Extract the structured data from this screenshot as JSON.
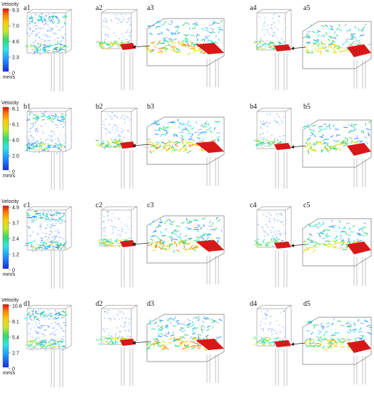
{
  "colorbar": {
    "title": "Velocity",
    "unit": "mm/s",
    "colors": [
      "#1a2bd6",
      "#1f8fff",
      "#2ee6e6",
      "#35d96b",
      "#c8e82a",
      "#ffcc00",
      "#ff7a00",
      "#e01010"
    ]
  },
  "rows": [
    {
      "id": "a",
      "ticks": [
        "9.3",
        "7.0",
        "4.6",
        "2.3",
        "0"
      ],
      "panels": [
        "a1",
        "a2",
        "a3",
        "a4",
        "a5"
      ]
    },
    {
      "id": "b",
      "ticks": [
        "8.1",
        "6.1",
        "4.0",
        "2.0",
        "0"
      ],
      "panels": [
        "b1",
        "b2",
        "b3",
        "b4",
        "b5"
      ]
    },
    {
      "id": "c",
      "ticks": [
        "4.9",
        "3.7",
        "2.4",
        "1.2",
        "0"
      ],
      "panels": [
        "c1",
        "c2",
        "c3",
        "c4",
        "c5"
      ]
    },
    {
      "id": "d",
      "ticks": [
        "10.8",
        "8.1",
        "5.4",
        "2.7",
        "0"
      ],
      "panels": [
        "d1",
        "d2",
        "d3",
        "d4",
        "d5"
      ]
    }
  ]
}
